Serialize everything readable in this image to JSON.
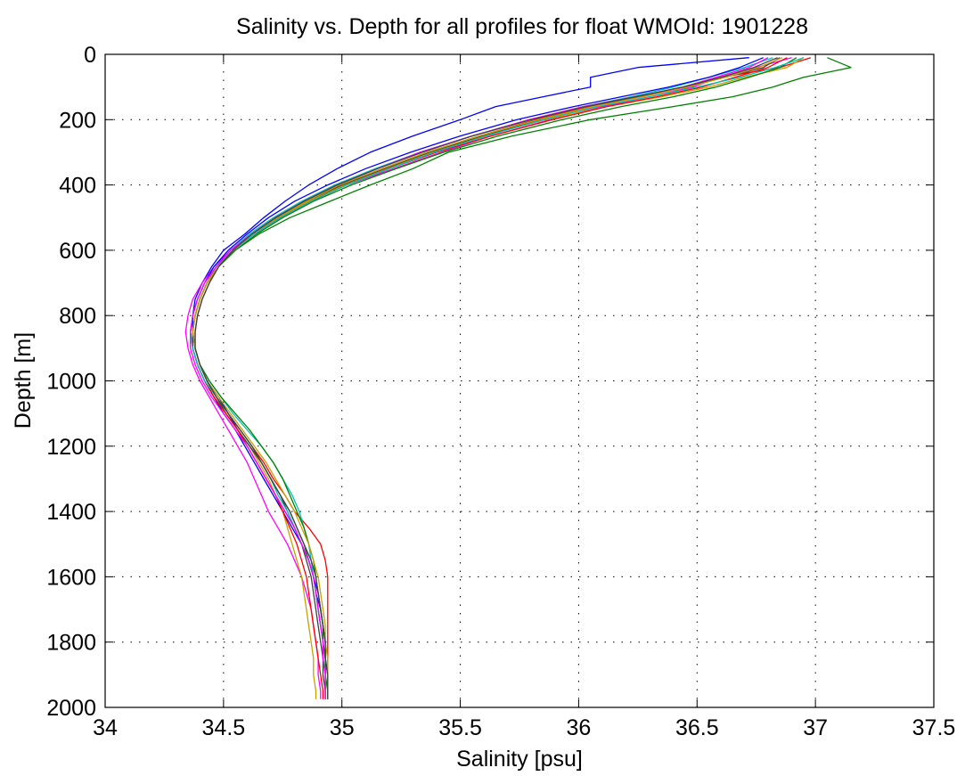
{
  "chart_data": {
    "type": "line",
    "title": "Salinity vs. Depth for all profiles for float WMOId: 1901228",
    "xlabel": "Salinity [psu]",
    "ylabel": "Depth [m]",
    "xlim": [
      34,
      37.5
    ],
    "ylim": [
      0,
      2000
    ],
    "y_reversed": true,
    "grid": true,
    "legend": "none",
    "x_ticks": [
      "34",
      "34.5",
      "35",
      "35.5",
      "36",
      "36.5",
      "37",
      "37.5"
    ],
    "y_ticks": [
      "0",
      "200",
      "400",
      "600",
      "800",
      "1000",
      "1200",
      "1400",
      "1600",
      "1800",
      "2000"
    ],
    "depth": [
      10,
      40,
      70,
      100,
      130,
      160,
      200,
      250,
      300,
      350,
      400,
      450,
      500,
      550,
      600,
      650,
      700,
      750,
      800,
      850,
      900,
      950,
      1000,
      1050,
      1100,
      1150,
      1200,
      1250,
      1300,
      1350,
      1400,
      1450,
      1500,
      1550,
      1600,
      1650,
      1700,
      1750,
      1800,
      1850,
      1900,
      1950,
      1975
    ],
    "series": [
      {
        "color": "#0000ff",
        "values": [
          36.72,
          36.25,
          36.05,
          36.05,
          35.85,
          35.65,
          35.5,
          35.3,
          35.12,
          34.98,
          34.86,
          34.76,
          34.67,
          34.59,
          34.5,
          34.45,
          34.41,
          34.38,
          34.37,
          34.37,
          34.38,
          34.4,
          34.43,
          34.48,
          34.52,
          34.56,
          34.6,
          34.64,
          34.68,
          34.72,
          34.76,
          34.8,
          34.83,
          34.86,
          34.88,
          34.89,
          34.91,
          34.92,
          34.93,
          34.93,
          34.94,
          34.94,
          34.94
        ]
      },
      {
        "color": "#008000",
        "values": [
          37.05,
          37.15,
          36.95,
          36.82,
          36.65,
          36.4,
          36.05,
          35.72,
          35.45,
          35.3,
          35.12,
          34.95,
          34.78,
          34.65,
          34.55,
          34.48,
          34.43,
          34.4,
          34.38,
          34.37,
          34.38,
          34.4,
          34.43,
          34.47,
          34.51,
          34.56,
          34.61,
          34.66,
          34.7,
          34.74,
          34.78,
          34.81,
          34.84,
          34.86,
          34.88,
          34.89,
          34.9,
          34.91,
          34.92,
          34.93,
          34.93,
          34.94,
          34.94
        ]
      },
      {
        "color": "#ff0000",
        "values": [
          36.98,
          36.85,
          36.6,
          36.45,
          36.25,
          36.05,
          35.82,
          35.58,
          35.36,
          35.17,
          34.99,
          34.84,
          34.72,
          34.62,
          34.54,
          34.48,
          34.44,
          34.41,
          34.39,
          34.38,
          34.38,
          34.4,
          34.43,
          34.47,
          34.52,
          34.57,
          34.62,
          34.67,
          34.71,
          34.76,
          34.8,
          34.86,
          34.91,
          34.93,
          34.94,
          34.94,
          34.94,
          34.94,
          34.94,
          34.94,
          34.94,
          34.94,
          34.94
        ]
      },
      {
        "color": "#00bfbf",
        "values": [
          36.82,
          36.7,
          36.55,
          36.4,
          36.22,
          36.02,
          35.8,
          35.55,
          35.33,
          35.14,
          34.97,
          34.83,
          34.71,
          34.61,
          34.53,
          34.47,
          34.43,
          34.4,
          34.38,
          34.37,
          34.38,
          34.4,
          34.44,
          34.49,
          34.54,
          34.6,
          34.66,
          34.71,
          34.75,
          34.79,
          34.82,
          34.84,
          34.86,
          34.87,
          34.88,
          34.89,
          34.9,
          34.91,
          34.92,
          34.92,
          34.93,
          34.93,
          34.93
        ]
      },
      {
        "color": "#ff00ff",
        "values": [
          36.9,
          36.75,
          36.6,
          36.48,
          36.3,
          36.1,
          35.88,
          35.63,
          35.42,
          35.22,
          35.02,
          34.86,
          34.73,
          34.62,
          34.53,
          34.46,
          34.41,
          34.37,
          34.35,
          34.34,
          34.35,
          34.37,
          34.4,
          34.44,
          34.48,
          34.52,
          34.56,
          34.6,
          34.63,
          34.66,
          34.69,
          34.73,
          34.77,
          34.8,
          34.83,
          34.85,
          34.87,
          34.88,
          34.89,
          34.9,
          34.9,
          34.91,
          34.91
        ]
      },
      {
        "color": "#c8a000",
        "values": [
          36.95,
          36.88,
          36.7,
          36.55,
          36.35,
          36.12,
          35.86,
          35.6,
          35.38,
          35.19,
          35.01,
          34.86,
          34.73,
          34.62,
          34.54,
          34.47,
          34.43,
          34.4,
          34.38,
          34.37,
          34.37,
          34.39,
          34.42,
          34.46,
          34.51,
          34.56,
          34.61,
          34.65,
          34.69,
          34.72,
          34.75,
          34.77,
          34.79,
          34.81,
          34.83,
          34.84,
          34.85,
          34.86,
          34.87,
          34.88,
          34.88,
          34.89,
          34.89
        ]
      },
      {
        "color": "#404040",
        "values": [
          36.85,
          36.78,
          36.62,
          36.45,
          36.26,
          36.06,
          35.84,
          35.59,
          35.37,
          35.18,
          35.0,
          34.85,
          34.72,
          34.62,
          34.54,
          34.48,
          34.43,
          34.4,
          34.38,
          34.37,
          34.37,
          34.39,
          34.42,
          34.46,
          34.51,
          34.56,
          34.61,
          34.66,
          34.7,
          34.74,
          34.77,
          34.8,
          34.83,
          34.85,
          34.87,
          34.88,
          34.89,
          34.9,
          34.91,
          34.92,
          34.92,
          34.93,
          34.93
        ]
      },
      {
        "color": "#0000ff",
        "values": [
          36.78,
          36.68,
          36.55,
          36.38,
          36.18,
          35.98,
          35.74,
          35.5,
          35.29,
          35.1,
          34.94,
          34.8,
          34.69,
          34.6,
          34.52,
          34.46,
          34.42,
          34.39,
          34.37,
          34.36,
          34.37,
          34.39,
          34.42,
          34.46,
          34.5,
          34.55,
          34.59,
          34.63,
          34.67,
          34.71,
          34.75,
          34.79,
          34.83,
          34.86,
          34.88,
          34.9,
          34.91,
          34.92,
          34.93,
          34.93,
          34.94,
          34.94,
          34.94
        ]
      },
      {
        "color": "#008000",
        "values": [
          36.92,
          36.85,
          36.72,
          36.58,
          36.4,
          36.18,
          35.93,
          35.66,
          35.43,
          35.23,
          35.04,
          34.88,
          34.75,
          34.64,
          34.55,
          34.48,
          34.43,
          34.4,
          34.38,
          34.37,
          34.38,
          34.4,
          34.44,
          34.49,
          34.55,
          34.61,
          34.66,
          34.71,
          34.75,
          34.78,
          34.81,
          34.84,
          34.86,
          34.88,
          34.89,
          34.9,
          34.91,
          34.92,
          34.92,
          34.93,
          34.93,
          34.93,
          34.93
        ]
      },
      {
        "color": "#ff0000",
        "values": [
          36.88,
          36.8,
          36.66,
          36.52,
          36.33,
          36.12,
          35.89,
          35.63,
          35.4,
          35.2,
          35.02,
          34.87,
          34.74,
          34.63,
          34.54,
          34.47,
          34.42,
          34.39,
          34.37,
          34.36,
          34.37,
          34.39,
          34.42,
          34.46,
          34.51,
          34.56,
          34.6,
          34.64,
          34.68,
          34.72,
          34.75,
          34.78,
          34.81,
          34.83,
          34.85,
          34.86,
          34.87,
          34.88,
          34.89,
          34.9,
          34.91,
          34.92,
          34.92
        ]
      },
      {
        "color": "#00bfbf",
        "values": [
          36.95,
          36.83,
          36.68,
          36.5,
          36.3,
          36.08,
          35.85,
          35.61,
          35.39,
          35.2,
          35.02,
          34.87,
          34.74,
          34.63,
          34.54,
          34.47,
          34.42,
          34.39,
          34.37,
          34.36,
          34.37,
          34.39,
          34.42,
          34.47,
          34.52,
          34.57,
          34.62,
          34.66,
          34.7,
          34.73,
          34.77,
          34.8,
          34.83,
          34.86,
          34.88,
          34.89,
          34.9,
          34.91,
          34.92,
          34.92,
          34.93,
          34.93,
          34.93
        ]
      },
      {
        "color": "#ff00ff",
        "values": [
          36.8,
          36.72,
          36.58,
          36.44,
          36.24,
          36.02,
          35.79,
          35.55,
          35.33,
          35.15,
          34.98,
          34.84,
          34.72,
          34.62,
          34.53,
          34.47,
          34.42,
          34.39,
          34.37,
          34.36,
          34.36,
          34.38,
          34.41,
          34.45,
          34.5,
          34.55,
          34.6,
          34.64,
          34.68,
          34.72,
          34.76,
          34.8,
          34.83,
          34.86,
          34.88,
          34.89,
          34.9,
          34.91,
          34.92,
          34.92,
          34.93,
          34.93,
          34.93
        ]
      },
      {
        "color": "#c8a000",
        "values": [
          36.86,
          36.76,
          36.62,
          36.46,
          36.27,
          36.06,
          35.83,
          35.58,
          35.36,
          35.17,
          34.99,
          34.85,
          34.72,
          34.62,
          34.54,
          34.48,
          34.43,
          34.4,
          34.38,
          34.37,
          34.38,
          34.4,
          34.43,
          34.48,
          34.53,
          34.58,
          34.63,
          34.68,
          34.72,
          34.76,
          34.8,
          34.83,
          34.86,
          34.88,
          34.9,
          34.91,
          34.92,
          34.93,
          34.93,
          34.94,
          34.94,
          34.94,
          34.94
        ]
      },
      {
        "color": "#404040",
        "values": [
          36.84,
          36.74,
          36.6,
          36.44,
          36.24,
          36.03,
          35.8,
          35.55,
          35.34,
          35.15,
          34.98,
          34.84,
          34.72,
          34.62,
          34.54,
          34.48,
          34.44,
          34.41,
          34.39,
          34.38,
          34.38,
          34.4,
          34.43,
          34.47,
          34.52,
          34.57,
          34.62,
          34.66,
          34.7,
          34.74,
          34.78,
          34.81,
          34.84,
          34.87,
          34.89,
          34.9,
          34.91,
          34.92,
          34.93,
          34.93,
          34.94,
          34.94,
          34.94
        ]
      }
    ]
  }
}
